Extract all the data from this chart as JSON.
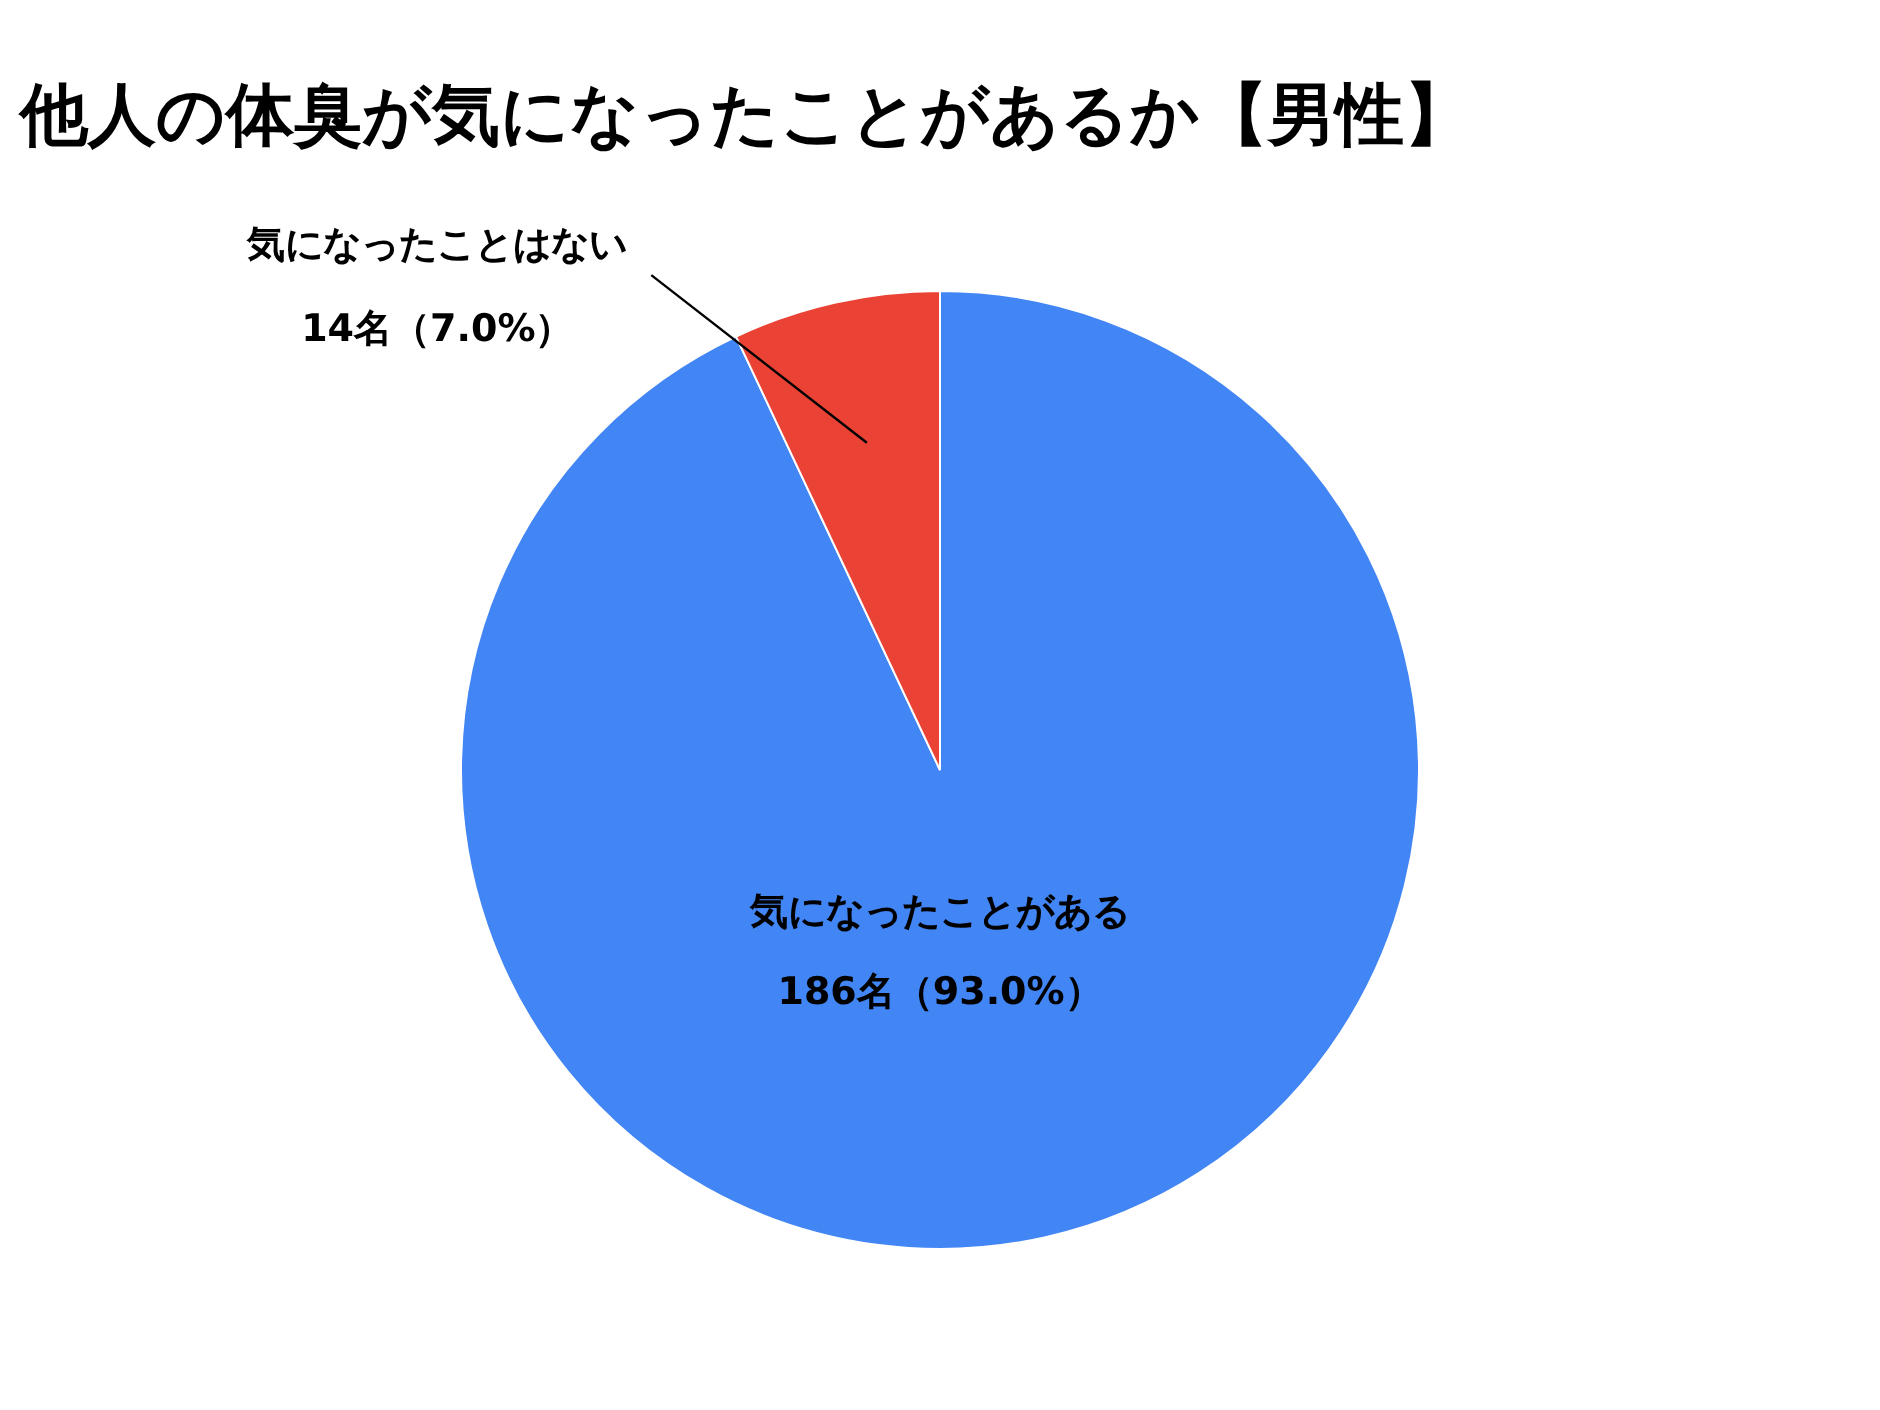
{
  "chart_data": {
    "type": "pie",
    "title": "他人の体臭が気になったことがあるか【男性】",
    "categories": [
      "気になったことがある",
      "気になったことはない"
    ],
    "values": [
      186,
      14
    ],
    "colors": [
      "#4285f4",
      "#ea4335"
    ],
    "value_labels": [
      "186名（93.0%）",
      "14名（7.0%）"
    ]
  }
}
